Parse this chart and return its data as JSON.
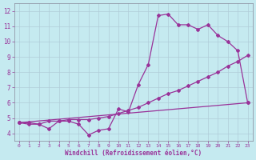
{
  "xlabel": "Windchill (Refroidissement éolien,°C)",
  "background_color": "#c5eaf0",
  "line_color": "#993399",
  "xlim": [
    -0.5,
    23.5
  ],
  "ylim": [
    3.5,
    12.5
  ],
  "xticks": [
    0,
    1,
    2,
    3,
    4,
    5,
    6,
    7,
    8,
    9,
    10,
    11,
    12,
    13,
    14,
    15,
    16,
    17,
    18,
    19,
    20,
    21,
    22,
    23
  ],
  "yticks": [
    4,
    5,
    6,
    7,
    8,
    9,
    10,
    11,
    12
  ],
  "grid_color": "#b0ccd8",
  "series1_x": [
    0,
    1,
    2,
    3,
    4,
    5,
    6,
    7,
    8,
    9,
    10,
    11,
    12,
    13,
    14,
    15,
    16,
    17,
    18,
    19,
    20,
    21,
    22,
    23
  ],
  "series1_y": [
    4.7,
    4.6,
    4.6,
    4.3,
    4.8,
    4.8,
    4.6,
    3.9,
    4.2,
    4.3,
    5.6,
    5.4,
    7.2,
    8.5,
    11.7,
    11.8,
    11.1,
    11.1,
    10.8,
    11.1,
    10.4,
    10.0,
    9.4,
    6.0
  ],
  "series2_x": [
    0,
    23
  ],
  "series2_y": [
    4.7,
    6.0
  ],
  "series3_x": [
    0,
    1,
    2,
    3,
    4,
    5,
    6,
    7,
    8,
    9,
    10,
    11,
    12,
    13,
    14,
    15,
    16,
    17,
    18,
    19,
    20,
    21,
    22,
    23
  ],
  "series3_y": [
    4.7,
    4.7,
    4.6,
    4.8,
    4.8,
    4.9,
    4.9,
    4.9,
    5.0,
    5.1,
    5.3,
    5.5,
    5.7,
    6.0,
    6.3,
    6.6,
    6.8,
    7.1,
    7.4,
    7.7,
    8.0,
    8.4,
    8.7,
    9.1
  ]
}
